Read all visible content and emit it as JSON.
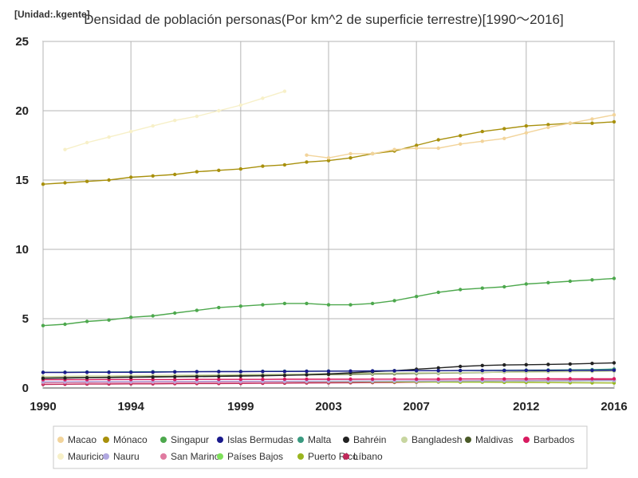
{
  "chart_data": {
    "type": "line",
    "title": "Densidad de población personas(Por km^2 de superficie terrestre)[1990～2016]",
    "unit_label": "[Unidad:.kgente]",
    "xlabel": "",
    "ylabel": "",
    "xlim": [
      1990,
      2016
    ],
    "ylim": [
      0,
      25
    ],
    "x_ticks": [
      1990,
      1994,
      1999,
      2003,
      2007,
      2012,
      2016
    ],
    "y_ticks": [
      0,
      5,
      10,
      15,
      20,
      25
    ],
    "grid": true,
    "legend_position": "bottom",
    "x": [
      1990,
      1991,
      1992,
      1993,
      1994,
      1995,
      1996,
      1997,
      1998,
      1999,
      2000,
      2001,
      2002,
      2003,
      2004,
      2005,
      2006,
      2007,
      2008,
      2009,
      2010,
      2011,
      2012,
      2013,
      2014,
      2015,
      2016
    ],
    "series": [
      {
        "name": "Macao",
        "color": "#f2d49b",
        "values": [
          null,
          null,
          null,
          null,
          null,
          null,
          null,
          null,
          null,
          null,
          null,
          null,
          16.8,
          16.6,
          16.9,
          16.9,
          17.2,
          17.3,
          17.3,
          17.6,
          17.8,
          18.0,
          18.4,
          18.8,
          19.1,
          19.4,
          19.7
        ]
      },
      {
        "name": "Mónaco",
        "color": "#a8900c",
        "values": [
          14.7,
          14.8,
          14.9,
          15.0,
          15.2,
          15.3,
          15.4,
          15.6,
          15.7,
          15.8,
          16.0,
          16.1,
          16.3,
          16.4,
          16.6,
          16.9,
          17.1,
          17.5,
          17.9,
          18.2,
          18.5,
          18.7,
          18.9,
          19.0,
          19.1,
          19.1,
          19.2
        ]
      },
      {
        "name": "Singapur",
        "color": "#4da84d",
        "values": [
          4.5,
          4.6,
          4.8,
          4.9,
          5.1,
          5.2,
          5.4,
          5.6,
          5.8,
          5.9,
          6.0,
          6.1,
          6.1,
          6.0,
          6.0,
          6.1,
          6.3,
          6.6,
          6.9,
          7.1,
          7.2,
          7.3,
          7.5,
          7.6,
          7.7,
          7.8,
          7.9
        ]
      },
      {
        "name": "Islas Bermudas",
        "color": "#1a1a8c",
        "values": [
          1.12,
          1.12,
          1.13,
          1.13,
          1.13,
          1.14,
          1.16,
          1.17,
          1.18,
          1.18,
          1.19,
          1.19,
          1.2,
          1.21,
          1.22,
          1.23,
          1.24,
          1.25,
          1.25,
          1.26,
          1.26,
          1.26,
          1.27,
          1.27,
          1.27,
          1.27,
          1.28
        ]
      },
      {
        "name": "Malta",
        "color": "#3a9a80",
        "values": [
          1.13,
          1.14,
          1.15,
          1.15,
          1.16,
          1.17,
          1.17,
          1.18,
          1.19,
          1.19,
          1.2,
          1.21,
          1.21,
          1.22,
          1.22,
          1.23,
          1.24,
          1.25,
          1.25,
          1.26,
          1.27,
          1.28,
          1.29,
          1.3,
          1.31,
          1.33,
          1.36
        ]
      },
      {
        "name": "Bahréin",
        "color": "#222222",
        "values": [
          0.7,
          0.72,
          0.74,
          0.75,
          0.77,
          0.79,
          0.81,
          0.82,
          0.84,
          0.86,
          0.88,
          0.91,
          0.95,
          1.02,
          1.09,
          1.17,
          1.25,
          1.35,
          1.45,
          1.55,
          1.62,
          1.66,
          1.68,
          1.7,
          1.73,
          1.77,
          1.81
        ]
      },
      {
        "name": "Bangladesh",
        "color": "#c8d6a0",
        "values": [
          0.82,
          0.84,
          0.86,
          0.87,
          0.89,
          0.9,
          0.92,
          0.93,
          0.95,
          0.97,
          0.98,
          1.0,
          1.02,
          1.03,
          1.05,
          1.06,
          1.08,
          1.09,
          1.1,
          1.11,
          1.13,
          1.14,
          1.15,
          1.16,
          1.18,
          1.19,
          1.21
        ]
      },
      {
        "name": "Maldivas",
        "color": "#4a5a28",
        "values": [
          0.72,
          0.74,
          0.76,
          0.78,
          0.8,
          0.82,
          0.84,
          0.86,
          0.88,
          0.9,
          0.91,
          0.93,
          0.95,
          0.97,
          0.99,
          1.01,
          1.03,
          1.05,
          1.07,
          1.09,
          1.12,
          1.15,
          1.18,
          1.22,
          1.26,
          1.3,
          1.35
        ]
      },
      {
        "name": "Barbados",
        "color": "#d81b60",
        "values": [
          0.6,
          0.6,
          0.6,
          0.61,
          0.61,
          0.61,
          0.61,
          0.62,
          0.62,
          0.62,
          0.62,
          0.63,
          0.63,
          0.63,
          0.63,
          0.64,
          0.64,
          0.64,
          0.64,
          0.65,
          0.65,
          0.65,
          0.65,
          0.66,
          0.66,
          0.66,
          0.66
        ]
      },
      {
        "name": "Mauricio",
        "color": "#f7f0c8",
        "values": [
          null,
          17.2,
          17.7,
          18.1,
          18.5,
          18.9,
          19.3,
          19.6,
          20.0,
          20.4,
          20.9,
          21.4,
          null,
          null,
          null,
          null,
          null,
          null,
          null,
          null,
          null,
          null,
          null,
          null,
          null,
          null,
          null
        ]
      },
      {
        "name": "Nauru",
        "color": "#b0a8e0",
        "values": [
          0.45,
          0.45,
          0.46,
          0.46,
          0.46,
          0.47,
          0.47,
          0.47,
          0.48,
          0.48,
          0.48,
          0.48,
          0.49,
          0.49,
          0.49,
          0.49,
          0.5,
          0.5,
          0.5,
          0.51,
          0.51,
          0.51,
          0.52,
          0.52,
          0.52,
          0.53,
          0.53
        ]
      },
      {
        "name": "San Marino",
        "color": "#e07aa0",
        "values": [
          0.38,
          0.39,
          0.39,
          0.4,
          0.4,
          0.41,
          0.41,
          0.42,
          0.42,
          0.43,
          0.44,
          0.45,
          0.46,
          0.47,
          0.48,
          0.49,
          0.5,
          0.51,
          0.52,
          0.52,
          0.53,
          0.53,
          0.54,
          0.54,
          0.55,
          0.55,
          0.55
        ]
      },
      {
        "name": "Países Bajos",
        "color": "#7ee05a",
        "values": [
          0.44,
          0.44,
          0.44,
          0.45,
          0.45,
          0.45,
          0.45,
          0.46,
          0.46,
          0.46,
          0.47,
          0.47,
          0.47,
          0.48,
          0.48,
          0.48,
          0.48,
          0.49,
          0.49,
          0.49,
          0.49,
          0.5,
          0.5,
          0.5,
          0.5,
          0.51,
          0.51
        ]
      },
      {
        "name": "Puerto Rico",
        "color": "#9ab520",
        "values": [
          0.4,
          0.41,
          0.41,
          0.42,
          0.42,
          0.43,
          0.43,
          0.43,
          0.44,
          0.44,
          0.44,
          0.44,
          0.45,
          0.45,
          0.45,
          0.44,
          0.44,
          0.44,
          0.43,
          0.42,
          0.42,
          0.41,
          0.4,
          0.39,
          0.38,
          0.37,
          0.36
        ]
      },
      {
        "name": "Líbano",
        "color": "#c0285a",
        "values": [
          0.26,
          0.27,
          0.28,
          0.29,
          0.3,
          0.3,
          0.31,
          0.32,
          0.32,
          0.33,
          0.34,
          0.35,
          0.36,
          0.37,
          0.38,
          0.39,
          0.4,
          0.42,
          0.44,
          0.46,
          0.48,
          0.5,
          0.52,
          0.55,
          0.57,
          0.59,
          0.6
        ]
      }
    ]
  }
}
